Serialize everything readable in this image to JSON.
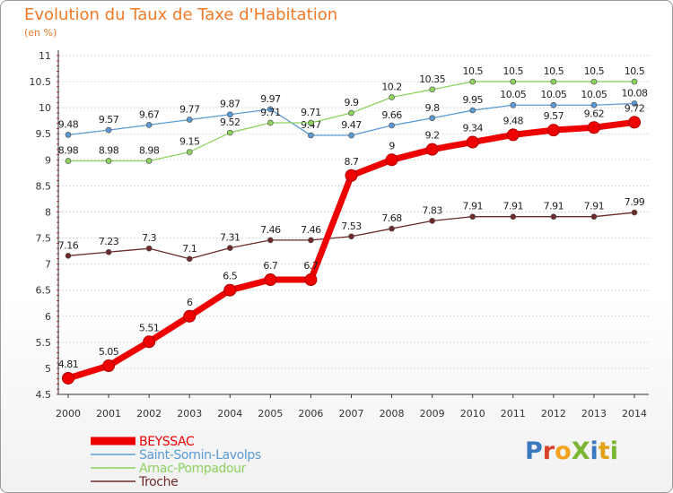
{
  "title": "Evolution du Taux de Taxe d'Habitation",
  "subtitle": "(en %)",
  "logo": {
    "text": "ProXiti",
    "letters": [
      "P",
      "r",
      "o",
      "X",
      "i",
      "t",
      "i"
    ],
    "colors": [
      "#3a78c0",
      "#d9432b",
      "#f3a21f",
      "#7ab533",
      "#3a78c0",
      "#e0a31a",
      "#7ab533"
    ]
  },
  "chart_data": {
    "type": "line",
    "title": "Evolution du Taux de Taxe d'Habitation",
    "subtitle": "(en %)",
    "xlabel": "",
    "ylabel": "(en %)",
    "x": [
      "2000",
      "2001",
      "2002",
      "2003",
      "2004",
      "2005",
      "2006",
      "2007",
      "2008",
      "2009",
      "2010",
      "2011",
      "2012",
      "2013",
      "2014"
    ],
    "ylim": [
      4.5,
      11
    ],
    "yticks": [
      "4.5",
      "5",
      "5.5",
      "6",
      "6.5",
      "7",
      "7.5",
      "8",
      "8.5",
      "9",
      "9.5",
      "10",
      "10.5",
      "11"
    ],
    "grid": "horizontal dotted",
    "legend_position": "bottom-left",
    "series": [
      {
        "name": "BEYSSAC",
        "color": "#ee0000",
        "values": [
          4.81,
          5.05,
          5.51,
          6,
          6.5,
          6.7,
          6.7,
          8.7,
          9,
          9.2,
          9.34,
          9.48,
          9.57,
          9.62,
          9.72
        ],
        "labels": [
          "4.81",
          "5.05",
          "5.51",
          "6",
          "6.5",
          "6.7",
          "6.7",
          "8.7",
          "9",
          "9.2",
          "9.34",
          "9.48",
          "9.57",
          "9.62",
          "9.72"
        ]
      },
      {
        "name": "Saint-Sornin-Lavolps",
        "color": "#5b9bd5",
        "values": [
          9.48,
          9.57,
          9.67,
          9.77,
          9.87,
          9.97,
          9.47,
          9.47,
          9.66,
          9.8,
          9.95,
          10.05,
          10.05,
          10.05,
          10.08
        ],
        "labels": [
          "9.48",
          "9.57",
          "9.67",
          "9.77",
          "9.87",
          "9.97",
          "9.47",
          "9.47",
          "9.66",
          "9.8",
          "9.95",
          "10.05",
          "10.05",
          "10.05",
          "10.08"
        ]
      },
      {
        "name": "Arnac-Pompadour",
        "color": "#8dd35f",
        "values": [
          8.98,
          8.98,
          8.98,
          9.15,
          9.52,
          9.71,
          9.71,
          9.9,
          10.2,
          10.35,
          10.5,
          10.5,
          10.5,
          10.5,
          10.5
        ],
        "labels": [
          "8.98",
          "8.98",
          "8.98",
          "9.15",
          "9.52",
          "9.71",
          "9.71",
          "9.9",
          "10.2",
          "10.35",
          "10.5",
          "10.5",
          "10.5",
          "10.5",
          "10.5"
        ]
      },
      {
        "name": "Troche",
        "color": "#6e2a2a",
        "values": [
          7.16,
          7.23,
          7.3,
          7.1,
          7.31,
          7.46,
          7.46,
          7.53,
          7.68,
          7.83,
          7.91,
          7.91,
          7.91,
          7.91,
          7.99
        ],
        "labels": [
          "7.16",
          "7.23",
          "7.3",
          "7.1",
          "7.31",
          "7.46",
          "7.46",
          "7.53",
          "7.68",
          "7.83",
          "7.91",
          "7.91",
          "7.91",
          "7.91",
          "7.99"
        ]
      }
    ]
  }
}
